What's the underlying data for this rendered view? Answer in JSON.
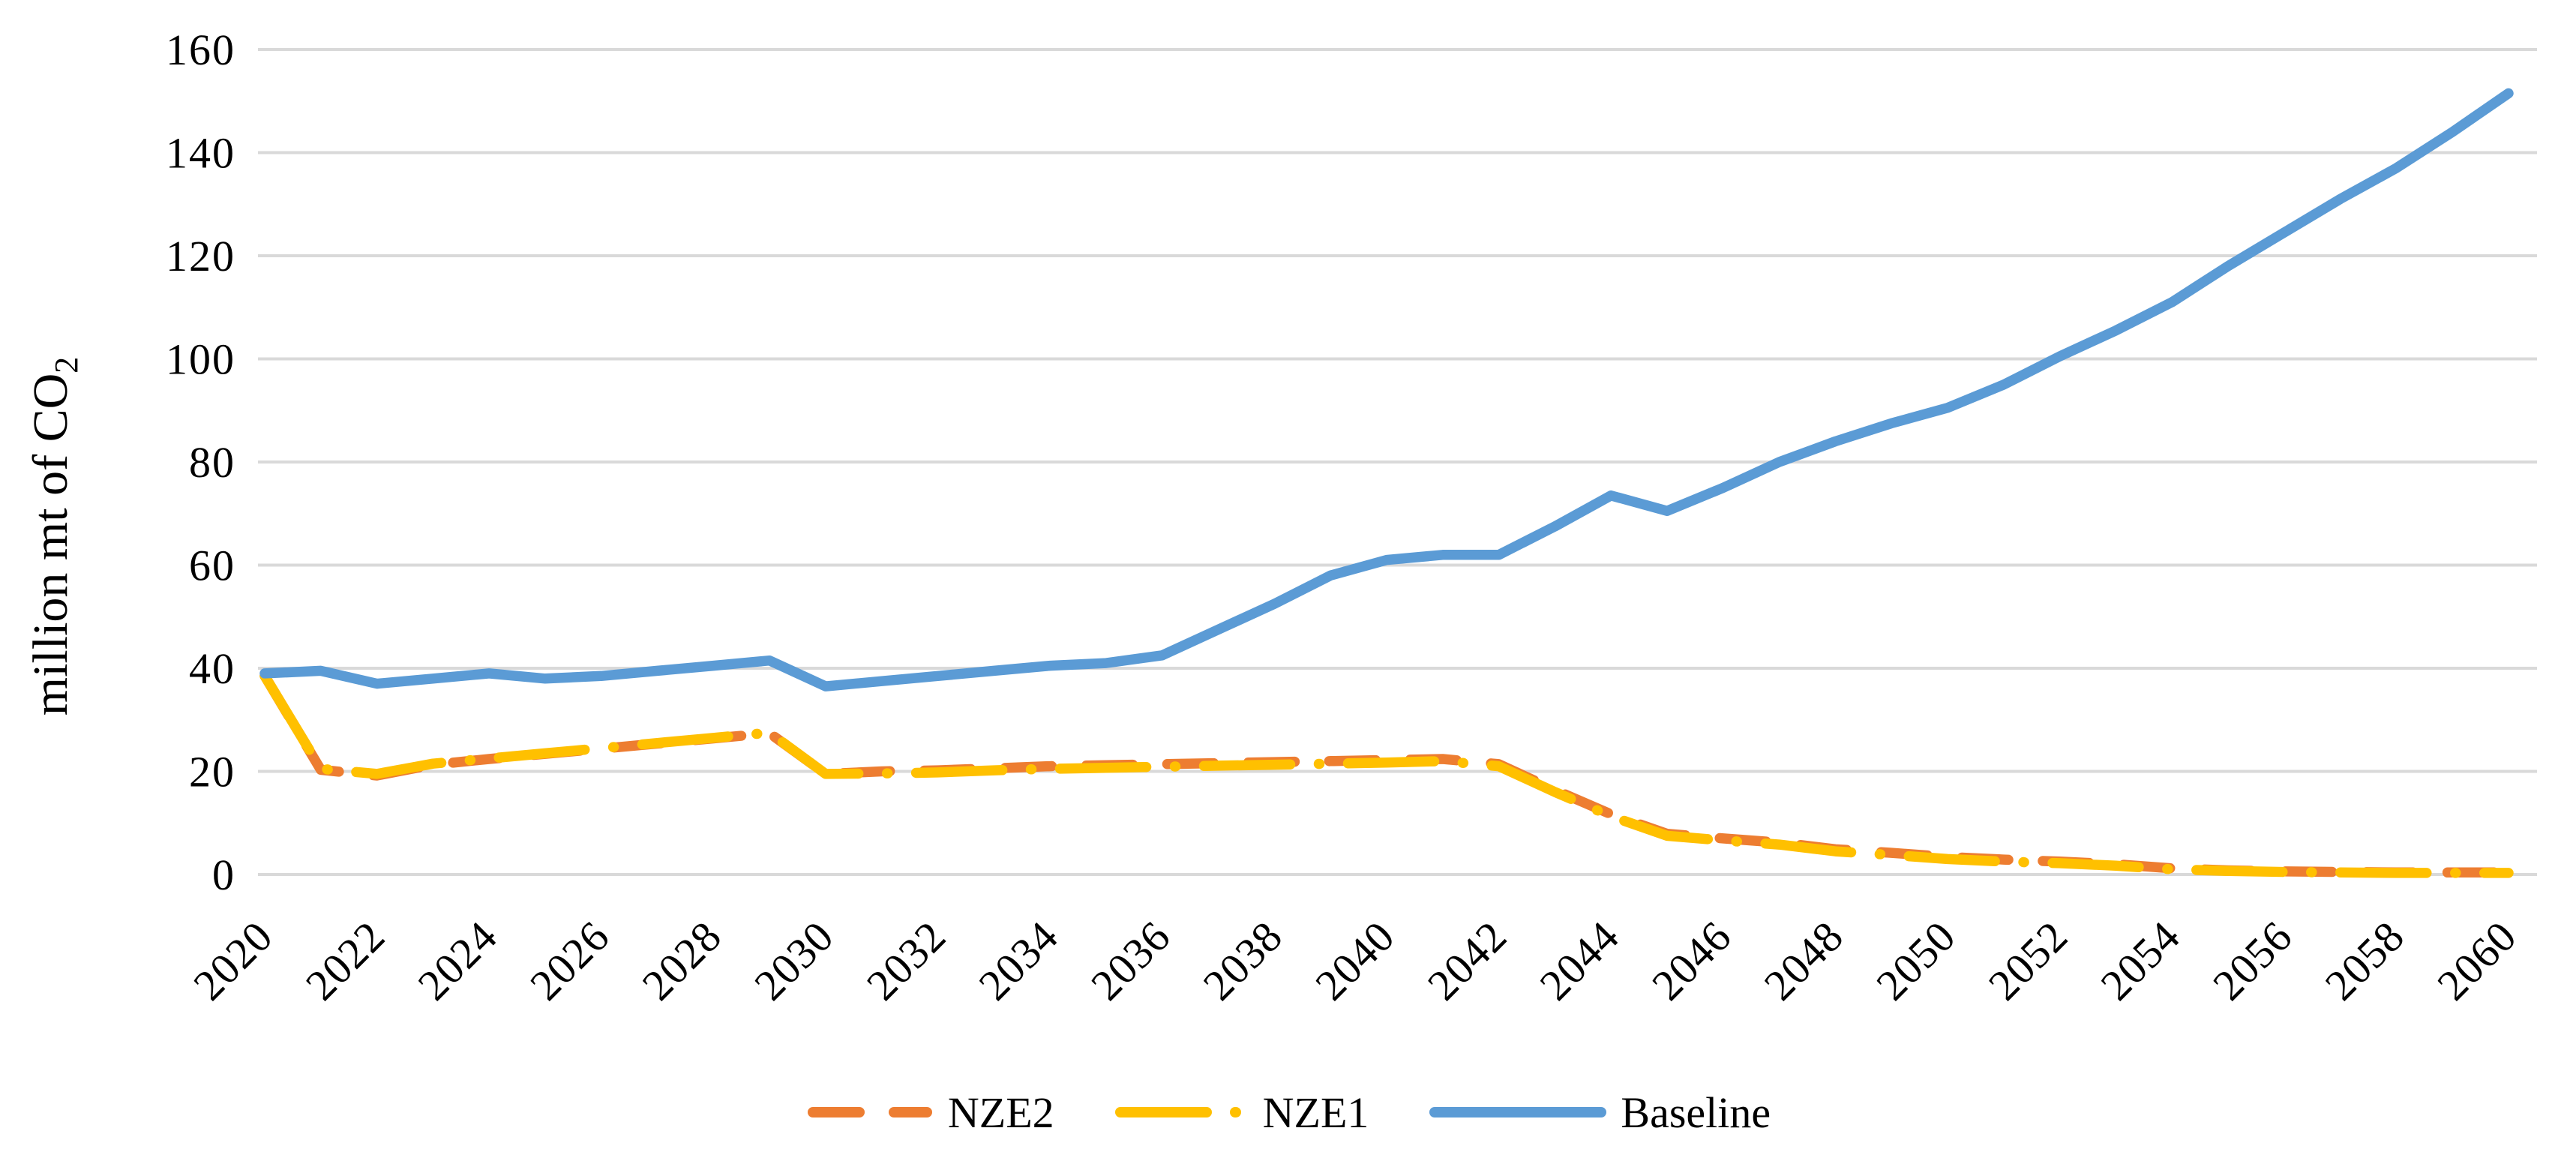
{
  "chart_data": {
    "type": "line",
    "title": "",
    "ylabel_main": "million mt of CO",
    "ylabel_sub": "2",
    "xlabel": "",
    "x": [
      2020,
      2021,
      2022,
      2023,
      2024,
      2025,
      2026,
      2027,
      2028,
      2029,
      2030,
      2031,
      2032,
      2033,
      2034,
      2035,
      2036,
      2037,
      2038,
      2039,
      2040,
      2041,
      2042,
      2043,
      2044,
      2045,
      2046,
      2047,
      2048,
      2049,
      2050,
      2051,
      2052,
      2053,
      2054,
      2055,
      2056,
      2057,
      2058,
      2059,
      2060
    ],
    "x_tick_labels": [
      "2020",
      "2022",
      "2024",
      "2026",
      "2028",
      "2030",
      "2032",
      "2034",
      "2036",
      "2038",
      "2040",
      "2042",
      "2044",
      "2046",
      "2048",
      "2050",
      "2052",
      "2054",
      "2056",
      "2058",
      "2060"
    ],
    "y_ticks": [
      0,
      20,
      40,
      60,
      80,
      100,
      120,
      140,
      160
    ],
    "y_tick_labels": [
      "0",
      "20",
      "40",
      "60",
      "80",
      "100",
      "120",
      "140",
      "160"
    ],
    "ylim": [
      0,
      160
    ],
    "xlim": [
      2020,
      2060
    ],
    "grid": "horizontal",
    "gridline_color": "#D9D9D9",
    "text_color": "#000000",
    "background_color": "#FFFFFF",
    "legend_position": "bottom",
    "series": [
      {
        "name": "NZE2",
        "color": "#ED7D31",
        "style": "dash",
        "values": [
          38.5,
          20.3,
          19.2,
          21.3,
          22.4,
          23.4,
          24.4,
          25.4,
          26.4,
          27.4,
          19.5,
          20,
          20.2,
          20.6,
          21,
          21.2,
          21.4,
          21.6,
          21.8,
          22,
          22.2,
          22.4,
          21.4,
          16.4,
          11.7,
          7.9,
          7,
          6.2,
          4.9,
          4.2,
          3.4,
          2.9,
          2.5,
          2,
          1.2,
          0.8,
          0.6,
          0.5,
          0.4,
          0.4,
          0.4
        ]
      },
      {
        "name": "NZE1",
        "color": "#FFC000",
        "style": "long-dash-dot",
        "values": [
          38.5,
          20.5,
          19.5,
          21.5,
          22.5,
          23.5,
          24.5,
          25.5,
          26.5,
          27.5,
          19.5,
          19.6,
          19.8,
          20.2,
          20.5,
          20.7,
          20.9,
          21.1,
          21.3,
          21.5,
          21.7,
          22,
          21,
          16,
          11.3,
          7.5,
          6.6,
          5.8,
          4.5,
          3.8,
          3,
          2.5,
          2.2,
          1.7,
          1,
          0.7,
          0.5,
          0.4,
          0.3,
          0.3,
          0.3
        ]
      },
      {
        "name": "Baseline",
        "color": "#5B9BD5",
        "style": "solid",
        "values": [
          39,
          39.5,
          37,
          38,
          39,
          38,
          38.5,
          39.5,
          40.5,
          41.5,
          36.5,
          37.5,
          38.5,
          39.5,
          40.5,
          41,
          42.5,
          47.5,
          52.5,
          58,
          61,
          62,
          62,
          67.5,
          73.5,
          70.5,
          75,
          80,
          84,
          87.5,
          90.5,
          95,
          100.5,
          105.5,
          111,
          118,
          124.5,
          131,
          137,
          144,
          151.5
        ]
      }
    ]
  }
}
